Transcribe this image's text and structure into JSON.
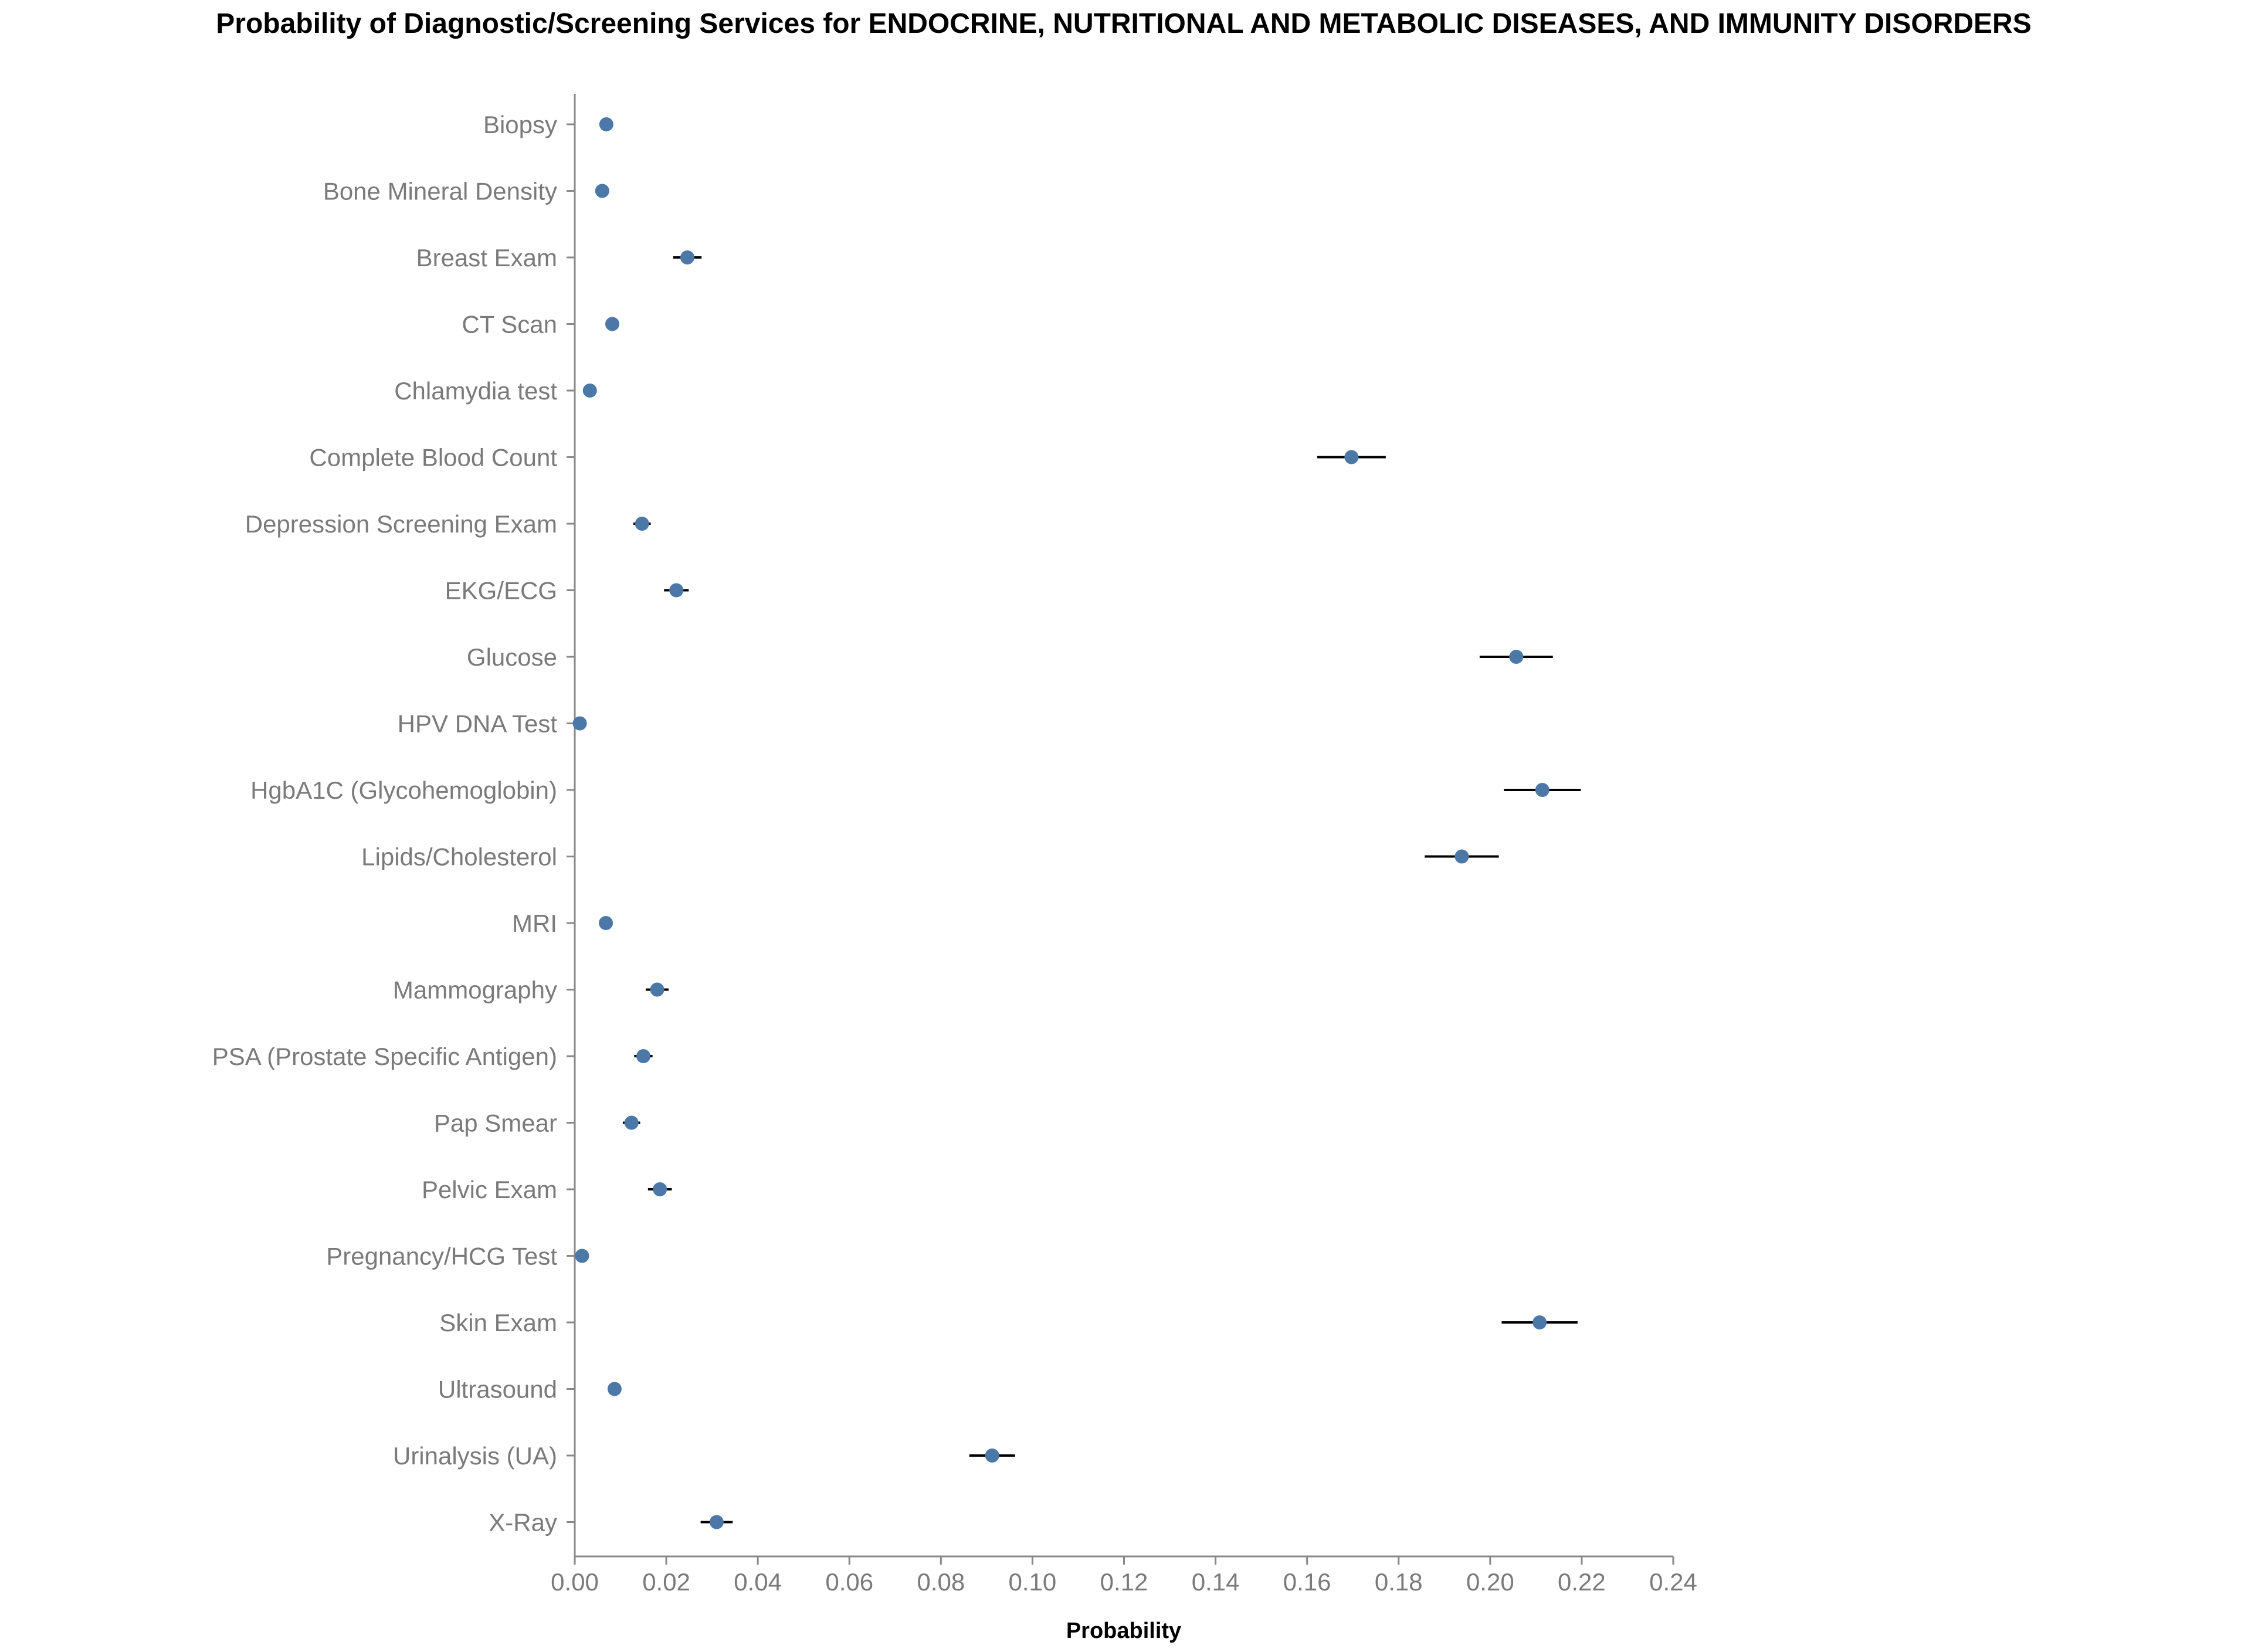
{
  "chart_data": {
    "type": "scatter",
    "title": "Probability of Diagnostic/Screening Services for ENDOCRINE, NUTRITIONAL AND METABOLIC DISEASES, AND IMMUNITY DISORDERS",
    "xlabel": "Probability",
    "ylabel": "",
    "xlim": [
      0,
      0.24
    ],
    "x_ticks": [
      "0.00",
      "0.02",
      "0.04",
      "0.06",
      "0.08",
      "0.10",
      "0.12",
      "0.14",
      "0.16",
      "0.18",
      "0.20",
      "0.22",
      "0.24"
    ],
    "grid": false,
    "point_color": "#4c78a8",
    "errorbar_color": "#000000",
    "categories": [
      "Biopsy",
      "Bone Mineral Density",
      "Breast Exam",
      "CT Scan",
      "Chlamydia test",
      "Complete Blood Count",
      "Depression Screening Exam",
      "EKG/ECG",
      "Glucose",
      "HPV DNA Test",
      "HgbA1C (Glycohemoglobin)",
      "Lipids/Cholesterol",
      "MRI",
      "Mammography",
      "PSA (Prostate Specific Antigen)",
      "Pap Smear",
      "Pelvic Exam",
      "Pregnancy/HCG Test",
      "Skin Exam",
      "Ultrasound",
      "Urinalysis (UA)",
      "X-Ray"
    ],
    "values": [
      0.0069,
      0.006,
      0.0246,
      0.0082,
      0.0033,
      0.1697,
      0.0147,
      0.0222,
      0.2057,
      0.0011,
      0.2114,
      0.1938,
      0.0068,
      0.018,
      0.015,
      0.0124,
      0.0186,
      0.0016,
      0.2108,
      0.0087,
      0.0912,
      0.031
    ],
    "lower": [
      0.0055,
      0.0054,
      0.0215,
      0.007,
      0.003,
      0.1622,
      0.0128,
      0.0195,
      0.1977,
      0.0009,
      0.203,
      0.1857,
      0.0058,
      0.0155,
      0.013,
      0.0105,
      0.016,
      0.0013,
      0.2025,
      0.0073,
      0.0862,
      0.0275
    ],
    "upper": [
      0.0083,
      0.0066,
      0.0277,
      0.0094,
      0.0036,
      0.1772,
      0.0166,
      0.0249,
      0.2137,
      0.0013,
      0.2198,
      0.2019,
      0.0078,
      0.0205,
      0.017,
      0.0143,
      0.0212,
      0.0019,
      0.2191,
      0.0101,
      0.0962,
      0.0345
    ]
  }
}
